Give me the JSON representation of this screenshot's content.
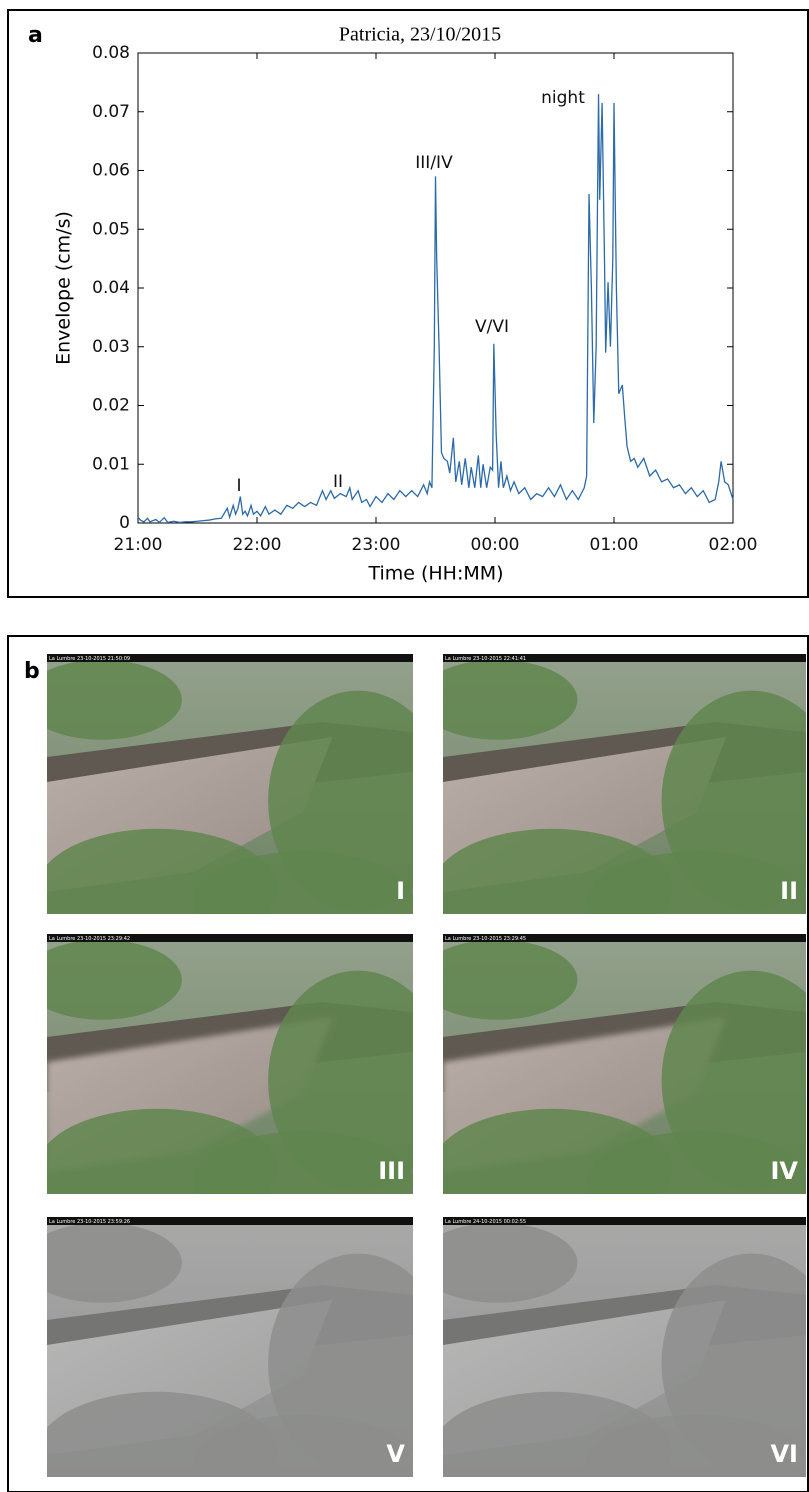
{
  "chart_data": {
    "type": "line",
    "panel_label": "a",
    "title": "Patricia, 23/10/2015",
    "x_label": "Time (HH:MM)",
    "y_label": "Envelope (cm/s)",
    "color": "#2c6aa8",
    "xlim": [
      21,
      26
    ],
    "ylim": [
      0,
      0.08
    ],
    "xticks": [
      {
        "value": 21,
        "label": "21:00"
      },
      {
        "value": 22,
        "label": "22:00"
      },
      {
        "value": 23,
        "label": "23:00"
      },
      {
        "value": 24,
        "label": "00:00"
      },
      {
        "value": 25,
        "label": "01:00"
      },
      {
        "value": 26,
        "label": "02:00"
      }
    ],
    "yticks": [
      0,
      0.01,
      0.02,
      0.03,
      0.04,
      0.05,
      0.06,
      0.07,
      0.08
    ],
    "annotations": [
      "I",
      "II",
      "III/IV",
      "V/VI",
      "night"
    ],
    "x": [
      21.0,
      21.02,
      21.05,
      21.08,
      21.1,
      21.15,
      21.18,
      21.22,
      21.25,
      21.3,
      21.35,
      21.4,
      21.45,
      21.5,
      21.55,
      21.6,
      21.65,
      21.7,
      21.75,
      21.77,
      21.8,
      21.82,
      21.84,
      21.86,
      21.88,
      21.9,
      21.92,
      21.95,
      21.97,
      22.0,
      22.03,
      22.07,
      22.1,
      22.15,
      22.2,
      22.25,
      22.3,
      22.35,
      22.4,
      22.45,
      22.5,
      22.55,
      22.58,
      22.62,
      22.65,
      22.7,
      22.75,
      22.78,
      22.8,
      22.85,
      22.88,
      22.92,
      22.95,
      23.0,
      23.05,
      23.1,
      23.15,
      23.2,
      23.25,
      23.3,
      23.35,
      23.4,
      23.43,
      23.45,
      23.47,
      23.49,
      23.5,
      23.51,
      23.53,
      23.55,
      23.57,
      23.6,
      23.62,
      23.65,
      23.67,
      23.7,
      23.72,
      23.75,
      23.78,
      23.8,
      23.83,
      23.86,
      23.88,
      23.9,
      23.93,
      23.96,
      23.98,
      23.99,
      24.01,
      24.03,
      24.05,
      24.07,
      24.1,
      24.13,
      24.16,
      24.2,
      24.25,
      24.3,
      24.35,
      24.4,
      24.45,
      24.5,
      24.55,
      24.6,
      24.65,
      24.7,
      24.75,
      24.77,
      24.79,
      24.81,
      24.83,
      24.85,
      24.87,
      24.88,
      24.9,
      24.92,
      24.93,
      24.95,
      24.97,
      24.99,
      25.0,
      25.02,
      25.04,
      25.07,
      25.09,
      25.11,
      25.14,
      25.17,
      25.2,
      25.25,
      25.3,
      25.35,
      25.4,
      25.45,
      25.5,
      25.55,
      25.6,
      25.65,
      25.7,
      25.75,
      25.8,
      25.85,
      25.88,
      25.9,
      25.93,
      25.96,
      26.0
    ],
    "values": [
      0.001,
      0.0005,
      0.0002,
      0.0008,
      0.0002,
      0.0006,
      0.0001,
      0.0009,
      0.0001,
      0.0003,
      0.0001,
      0.0002,
      0.0002,
      0.0003,
      0.0004,
      0.0005,
      0.0007,
      0.0008,
      0.0025,
      0.001,
      0.003,
      0.0015,
      0.0025,
      0.0045,
      0.0015,
      0.002,
      0.0012,
      0.003,
      0.0015,
      0.002,
      0.0012,
      0.0028,
      0.0015,
      0.0022,
      0.0015,
      0.003,
      0.0025,
      0.0035,
      0.0028,
      0.0035,
      0.003,
      0.0055,
      0.004,
      0.0055,
      0.0042,
      0.005,
      0.0045,
      0.006,
      0.004,
      0.0055,
      0.0035,
      0.004,
      0.0028,
      0.0045,
      0.0035,
      0.005,
      0.004,
      0.0055,
      0.0045,
      0.0055,
      0.0045,
      0.0065,
      0.005,
      0.007,
      0.006,
      0.03,
      0.059,
      0.045,
      0.03,
      0.012,
      0.011,
      0.0105,
      0.0085,
      0.0145,
      0.007,
      0.0105,
      0.0065,
      0.011,
      0.006,
      0.0095,
      0.006,
      0.0115,
      0.006,
      0.01,
      0.006,
      0.0095,
      0.009,
      0.0305,
      0.015,
      0.006,
      0.0105,
      0.006,
      0.008,
      0.0055,
      0.007,
      0.005,
      0.006,
      0.004,
      0.005,
      0.0045,
      0.006,
      0.0045,
      0.0065,
      0.004,
      0.0055,
      0.004,
      0.006,
      0.008,
      0.056,
      0.04,
      0.017,
      0.03,
      0.073,
      0.055,
      0.0715,
      0.045,
      0.029,
      0.041,
      0.03,
      0.045,
      0.0715,
      0.04,
      0.022,
      0.0235,
      0.018,
      0.013,
      0.0105,
      0.011,
      0.0095,
      0.011,
      0.008,
      0.009,
      0.007,
      0.0075,
      0.006,
      0.0065,
      0.005,
      0.006,
      0.0045,
      0.0055,
      0.0035,
      0.004,
      0.007,
      0.0105,
      0.007,
      0.0065,
      0.004
    ]
  },
  "photo_panel": {
    "panel_label": "b",
    "photos": [
      {
        "caption": "La Lumbre 23-10-2015 21:50:09",
        "label": "I"
      },
      {
        "caption": "La Lumbre 23-10-2015 22:41:41",
        "label": "II"
      },
      {
        "caption": "La Lumbre 23-10-2015 23:29:42",
        "label": "III"
      },
      {
        "caption": "La Lumbre 23-10-2015 23:29:45",
        "label": "IV"
      },
      {
        "caption": "La Lumbre 23-10-2015 23:59:26",
        "label": "V"
      },
      {
        "caption": "La Lumbre 24-10-2015 00:02:55",
        "label": "VI"
      }
    ]
  }
}
